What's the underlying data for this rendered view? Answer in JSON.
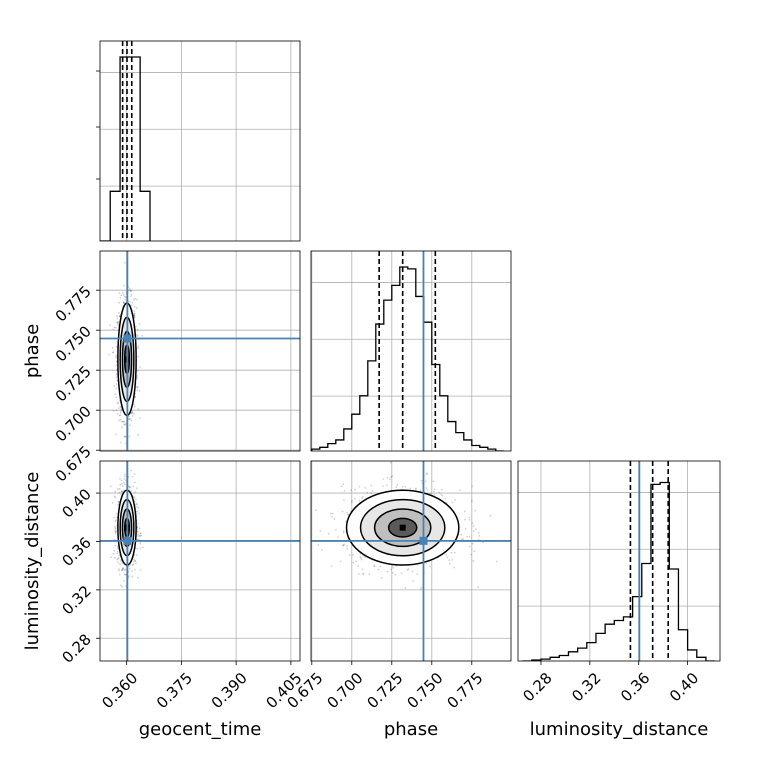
{
  "chart_data": {
    "type": "corner",
    "parameters": [
      "geocent_time",
      "phase",
      "luminosity_distance"
    ],
    "truths": {
      "geocent_time": 0.3602,
      "phase": 0.7448,
      "luminosity_distance": 0.3605
    },
    "grid": true,
    "axes": {
      "geocent_time": {
        "range": [
          0.3527,
          0.4075
        ],
        "ticks": [
          0.36,
          0.375,
          0.39,
          0.405
        ],
        "tick_labels": [
          "0.360",
          "0.375",
          "0.390",
          "0.405"
        ],
        "label": "geocent_time"
      },
      "phase": {
        "range": [
          0.6745,
          0.7995
        ],
        "ticks": [
          0.675,
          0.7,
          0.725,
          0.75,
          0.775
        ],
        "tick_labels": [
          "0.675",
          "0.700",
          "0.725",
          "0.750",
          "0.775"
        ],
        "label": "phase"
      },
      "luminosity_distance": {
        "range": [
          0.2612,
          0.4265
        ],
        "ticks": [
          0.28,
          0.32,
          0.36,
          0.4
        ],
        "tick_labels": [
          "0.28",
          "0.32",
          "0.36",
          "0.40"
        ],
        "label": "luminosity_distance"
      }
    },
    "histograms": {
      "geocent_time": {
        "edges": [
          0.3527,
          0.3555,
          0.3582,
          0.3609,
          0.3637,
          0.3664
        ],
        "counts": [
          0,
          0.27,
          1.0,
          1.0,
          0.27
        ],
        "quantiles": [
          0.3589,
          0.3601,
          0.3614
        ]
      },
      "phase": {
        "edges": [
          0.675,
          0.68,
          0.685,
          0.69,
          0.695,
          0.7,
          0.705,
          0.71,
          0.715,
          0.72,
          0.725,
          0.73,
          0.735,
          0.74,
          0.745,
          0.75,
          0.755,
          0.76,
          0.765,
          0.77,
          0.775,
          0.78,
          0.785,
          0.79,
          0.795
        ],
        "counts": [
          0.01,
          0.02,
          0.04,
          0.06,
          0.12,
          0.2,
          0.3,
          0.49,
          0.69,
          0.82,
          0.9,
          1.0,
          0.99,
          0.84,
          0.7,
          0.47,
          0.3,
          0.16,
          0.1,
          0.06,
          0.03,
          0.02,
          0.01,
          0.0
        ],
        "quantiles": [
          0.7171,
          0.7318,
          0.7522
        ]
      },
      "luminosity_distance": {
        "edges": [
          0.265,
          0.2725,
          0.28,
          0.2875,
          0.295,
          0.3025,
          0.31,
          0.3175,
          0.325,
          0.3325,
          0.34,
          0.3475,
          0.355,
          0.3625,
          0.37,
          0.3775,
          0.385,
          0.3925,
          0.4,
          0.4075,
          0.415,
          0.4225
        ],
        "counts": [
          0,
          0.005,
          0.01,
          0.02,
          0.03,
          0.05,
          0.07,
          0.1,
          0.15,
          0.2,
          0.22,
          0.24,
          0.35,
          0.53,
          0.96,
          0.97,
          0.5,
          0.17,
          0.06,
          0.02,
          0.0
        ],
        "quantiles": [
          0.3532,
          0.3714,
          0.3841
        ]
      }
    },
    "contour_levels": [
      "0.5σ",
      "1σ",
      "1.5σ",
      "2σ"
    ]
  }
}
